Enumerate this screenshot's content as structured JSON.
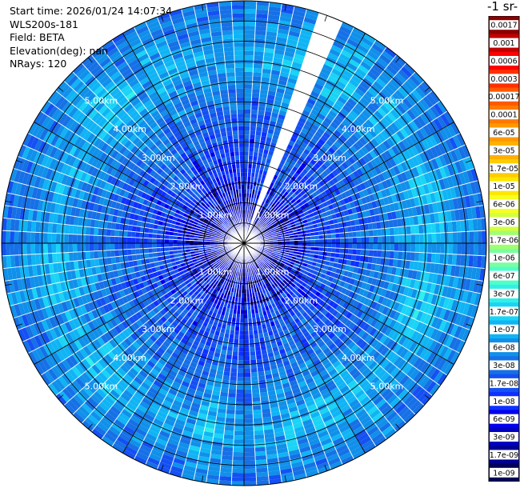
{
  "header": {
    "start_time": "Start time: 2026/01/24 14:07:34",
    "instrument": "WLS200s-181",
    "field": "Field: BETA",
    "elevation": "Elevation(deg): nan",
    "nrays": "NRays: 120"
  },
  "colorbar": {
    "unit_label": "-1 sr-",
    "tick_labels": [
      "0.0017",
      "0.001",
      "0.0006",
      "0.0003",
      "0.00017",
      "0.0001",
      "6e-05",
      "3e-05",
      "1.7e-05",
      "1e-05",
      "6e-06",
      "3e-06",
      "1.7e-06",
      "1e-06",
      "6e-07",
      "3e-07",
      "1.7e-07",
      "1e-07",
      "6e-08",
      "3e-08",
      "1.7e-08",
      "1e-08",
      "6e-09",
      "3e-09",
      "1.7e-09",
      "1e-09"
    ],
    "colors": [
      "#8b0000",
      "#c00000",
      "#ff0000",
      "#ff3000",
      "#ff5a00",
      "#ff7a00",
      "#ff9800",
      "#ffb000",
      "#ffcc00",
      "#ffe600",
      "#f5ff20",
      "#d2ff40",
      "#a0ff70",
      "#7affa0",
      "#50ffc8",
      "#30f0e8",
      "#1ad4f5",
      "#10b4f5",
      "#1090ea",
      "#1670e6",
      "#1450f2",
      "#0e30ff",
      "#0000ee",
      "#0000c0",
      "#000090",
      "#00005a"
    ]
  },
  "chart_data": {
    "type": "heatmap",
    "projection": "polar PPI",
    "field": "BETA",
    "nrays": 120,
    "range_rings": [
      {
        "range_km": 1,
        "label": "1.00km"
      },
      {
        "range_km": 2,
        "label": "2.00km"
      },
      {
        "range_km": 3,
        "label": "3.00km"
      },
      {
        "range_km": 4,
        "label": "4.00km"
      },
      {
        "range_km": 5,
        "label": "5.00km"
      }
    ],
    "max_range_km": 6,
    "azimuth_lines_deg": [
      0,
      30,
      60,
      90,
      120,
      150
    ],
    "missing_sector_deg": [
      19,
      23
    ],
    "profile": [
      {
        "range_km": 0.2,
        "log10_beta": -8.0
      },
      {
        "range_km": 0.5,
        "log10_beta": -8.2
      },
      {
        "range_km": 1.0,
        "log10_beta": -8.05
      },
      {
        "range_km": 2.0,
        "log10_beta": -7.75
      },
      {
        "range_km": 3.0,
        "log10_beta": -7.55
      },
      {
        "range_km": 4.0,
        "log10_beta": -7.2
      },
      {
        "range_km": 4.7,
        "log10_beta": -6.95
      },
      {
        "range_km": 5.5,
        "log10_beta": -7.25
      },
      {
        "range_km": 6.0,
        "log10_beta": -7.4
      }
    ],
    "colorbar_min": 1e-09,
    "colorbar_max": 0.0017,
    "colorbar_scale": "log"
  }
}
